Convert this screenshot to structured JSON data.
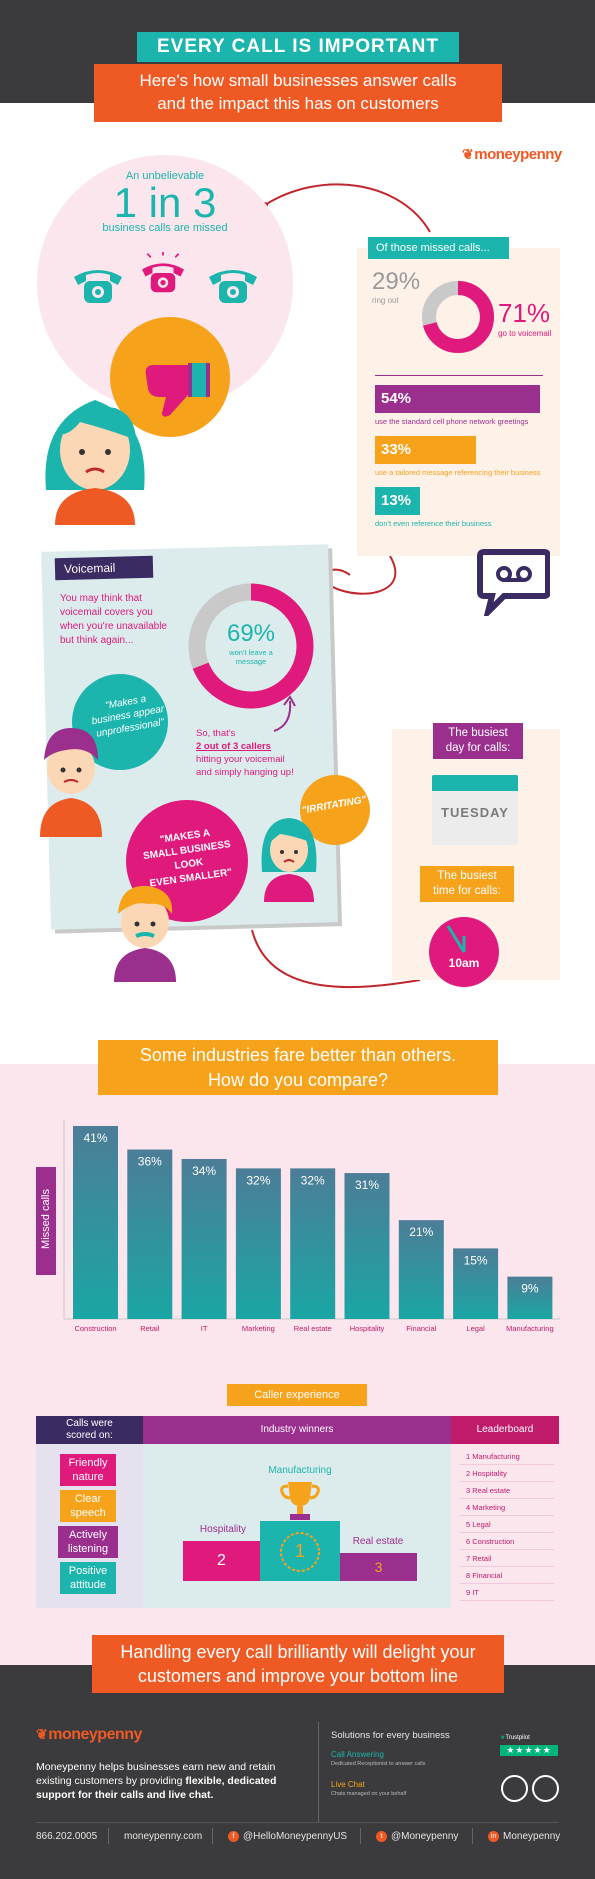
{
  "header": {
    "title": "EVERY CALL IS IMPORTANT",
    "subtitle_line1": "Here's how small businesses answer calls",
    "subtitle_line2": "and the impact this has on customers"
  },
  "brand": {
    "logo": "moneypenny"
  },
  "missed_stat": {
    "intro": "An unbelievable",
    "big": "1 in 3",
    "caption": "business calls are missed"
  },
  "missed_breakdown": {
    "title": "Of those missed calls...",
    "ring_out_pct": "29%",
    "ring_out_label": "ring out",
    "voicemail_pct": "71%",
    "voicemail_label": "go to voicemail",
    "donut_fraction": 0.71,
    "bars": [
      {
        "pct": "54%",
        "caption": "use the standard cell phone network greetings",
        "color": "#9b2f8e",
        "fraction": 1.0
      },
      {
        "pct": "33%",
        "caption": "use a tailored message referencing their business",
        "color": "#f7a21b",
        "fraction": 0.61
      },
      {
        "pct": "13%",
        "caption": "don't even reference their business",
        "color": "#1cb5ad",
        "fraction": 0.27
      }
    ]
  },
  "voicemail": {
    "label": "Voicemail",
    "intro_line1": "You may think that",
    "intro_line2": "voicemail covers you",
    "intro_line3": "when you're unavailable",
    "intro_line4": "but think again...",
    "donut_pct": "69%",
    "donut_sub1": "won't leave a",
    "donut_sub2": "message",
    "donut_fraction": 0.69,
    "quote1_line1": "\"Makes a",
    "quote1_line2": "business appear",
    "quote1_line3": "unprofessional\"",
    "sothat_line1": "So, that's",
    "sothat_line2": "2 out of 3 callers",
    "sothat_line3": "hitting your voicemail",
    "sothat_line4": "and simply hanging up!",
    "quote2": "\"IRRITATING\"",
    "quote3_line1": "\"MAKES A",
    "quote3_line2": "SMALL BUSINESS LOOK",
    "quote3_line3": "EVEN SMALLER\""
  },
  "busiest": {
    "day_title_line1": "The busiest",
    "day_title_line2": "day for calls:",
    "day": "TUESDAY",
    "time_title_line1": "The busiest",
    "time_title_line2": "time for calls:",
    "time": "10am"
  },
  "industries": {
    "heading_line1": "Some industries fare better than others.",
    "heading_line2": "How do you compare?"
  },
  "chart_data": {
    "type": "bar",
    "ylabel": "Missed calls",
    "categories": [
      "Construction",
      "Retail",
      "IT",
      "Marketing",
      "Real estate",
      "Hospitality",
      "Financial",
      "Legal",
      "Manufacturing"
    ],
    "values": [
      41,
      36,
      34,
      32,
      32,
      31,
      21,
      15,
      9
    ],
    "value_labels": [
      "41%",
      "36%",
      "34%",
      "32%",
      "32%",
      "31%",
      "21%",
      "15%",
      "9%"
    ]
  },
  "caller_experience": {
    "title": "Caller experience",
    "col1_header_line1": "Calls were",
    "col1_header_line2": "scored on:",
    "col2_header": "Industry winners",
    "col3_header": "Leaderboard",
    "criteria": [
      {
        "line1": "Friendly",
        "line2": "nature",
        "color": "#e0197d"
      },
      {
        "line1": "Clear",
        "line2": "speech",
        "color": "#f7a21b"
      },
      {
        "line1": "Actively",
        "line2": "listening",
        "color": "#9b2f8e"
      },
      {
        "line1": "Positive",
        "line2": "attitude",
        "color": "#1cb5ad"
      }
    ],
    "podium": {
      "first_label": "Manufacturing",
      "first": "1",
      "second_label": "Hospitality",
      "second": "2",
      "third_label": "Real estate",
      "third": "3"
    },
    "leaderboard": [
      "1 Manufacturing",
      "2 Hospitality",
      "3 Real estate",
      "4 Marketing",
      "5 Legal",
      "6 Construction",
      "7 Retail",
      "8 Financial",
      "9 IT"
    ]
  },
  "closing": {
    "line1": "Handling every call brilliantly will delight your",
    "line2": "customers and improve your bottom line"
  },
  "footer": {
    "logo": "moneypenny",
    "desc_line1": "Moneypenny helps businesses earn new and retain",
    "desc_line2_a": "existing customers by providing ",
    "desc_line2_b": "flexible, dedicated",
    "desc_line3": "support for their calls and live chat.",
    "solutions_title": "Solutions for every business",
    "sol1_title": "Call Answering",
    "sol1_desc": "Dedicated Receptionist to answer calls",
    "sol2_title": "Live Chat",
    "sol2_desc": "Chats managed on your behalf",
    "trustpilot": "Trustpilot",
    "phone": "866.202.0005",
    "website": "moneypenny.com",
    "facebook": "@HelloMoneypennyUS",
    "twitter": "@Moneypenny",
    "linkedin": "Moneypenny"
  }
}
